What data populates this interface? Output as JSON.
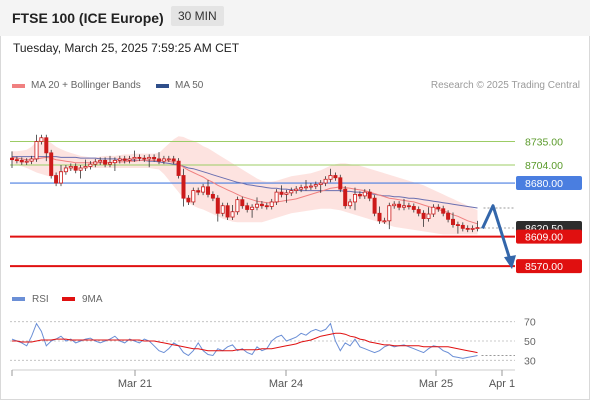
{
  "header": {
    "title": "FTSE 100 (ICE Europe)",
    "interval": "30 MIN"
  },
  "timestamp": "Tuesday, March 25, 2025 7:59:25 AM CET",
  "legend": [
    {
      "label": "MA 20 + Bollinger Bands",
      "color": "#f08080"
    },
    {
      "label": "MA 50",
      "color": "#2f4e8a"
    }
  ],
  "watermark": "Research © 2025 Trading Central",
  "colors": {
    "up": "#cc1a1a",
    "down": "#cc1a1a",
    "resistance": "#9ccc65",
    "pivot": "#4a7ee0",
    "support": "#e01010",
    "arrow": "#3366aa",
    "current": "#2d2d2d"
  },
  "chart_data": [
    {
      "type": "candlestick",
      "ylim": [
        8545,
        8790
      ],
      "x_labels": [
        "Mar 21",
        "Mar 24",
        "Mar 25",
        "Apr 1"
      ],
      "levels": [
        {
          "label": "8735.00",
          "value": 8735.0,
          "kind": "resistance"
        },
        {
          "label": "8704.00",
          "value": 8704.0,
          "kind": "resistance"
        },
        {
          "label": "8680.00",
          "value": 8680.0,
          "kind": "pivot"
        },
        {
          "label": "8620.50",
          "value": 8620.5,
          "kind": "current"
        },
        {
          "label": "8609.00",
          "value": 8609.0,
          "kind": "support"
        },
        {
          "label": "8570.00",
          "value": 8570.0,
          "kind": "support"
        }
      ],
      "forecast_path": [
        8620,
        8650,
        8570
      ],
      "close": [
        8711,
        8710,
        8708,
        8709,
        8712,
        8735,
        8740,
        8720,
        8690,
        8680,
        8695,
        8700,
        8702,
        8697,
        8700,
        8702,
        8705,
        8708,
        8710,
        8705,
        8707,
        8710,
        8712,
        8710,
        8712,
        8714,
        8713,
        8712,
        8714,
        8712,
        8709,
        8712,
        8712,
        8709,
        8690,
        8660,
        8655,
        8670,
        8668,
        8675,
        8665,
        8660,
        8640,
        8650,
        8635,
        8642,
        8658,
        8650,
        8645,
        8648,
        8652,
        8650,
        8649,
        8655,
        8668,
        8665,
        8667,
        8670,
        8672,
        8674,
        8675,
        8676,
        8678,
        8680,
        8685,
        8690,
        8687,
        8672,
        8650,
        8655,
        8665,
        8663,
        8668,
        8660,
        8640,
        8630,
        8630,
        8650,
        8652,
        8648,
        8650,
        8649,
        8645,
        8640,
        8633,
        8639,
        8648,
        8646,
        8640,
        8632,
        8625,
        8624,
        8620,
        8619,
        8620,
        8621
      ],
      "ma20": [
        8714,
        8713,
        8712,
        8711,
        8711,
        8712,
        8713,
        8714,
        8713,
        8711,
        8710,
        8709,
        8708,
        8707,
        8707,
        8707,
        8707,
        8707,
        8707,
        8707,
        8707,
        8708,
        8708,
        8708,
        8709,
        8709,
        8710,
        8710,
        8710,
        8710,
        8710,
        8710,
        8709,
        8707,
        8705,
        8701,
        8697,
        8694,
        8691,
        8688,
        8684,
        8681,
        8677,
        8674,
        8671,
        8668,
        8665,
        8662,
        8660,
        8658,
        8656,
        8655,
        8654,
        8654,
        8655,
        8656,
        8657,
        8658,
        8659,
        8661,
        8663,
        8665,
        8667,
        8669,
        8671,
        8673,
        8674,
        8675,
        8674,
        8673,
        8672,
        8671,
        8670,
        8668,
        8666,
        8664,
        8662,
        8660,
        8659,
        8658,
        8657,
        8656,
        8655,
        8653,
        8651,
        8649,
        8647,
        8645,
        8643,
        8641,
        8638,
        8636,
        8633,
        8630,
        8628,
        8626
      ],
      "ma50": [
        8715,
        8715,
        8715,
        8715,
        8715,
        8715,
        8715,
        8715,
        8715,
        8715,
        8714,
        8714,
        8714,
        8714,
        8713,
        8713,
        8713,
        8713,
        8712,
        8712,
        8712,
        8712,
        8711,
        8711,
        8711,
        8710,
        8710,
        8710,
        8709,
        8709,
        8708,
        8707,
        8706,
        8705,
        8704,
        8702,
        8700,
        8699,
        8697,
        8695,
        8693,
        8691,
        8689,
        8687,
        8685,
        8683,
        8681,
        8680,
        8678,
        8677,
        8676,
        8675,
        8674,
        8673,
        8673,
        8672,
        8672,
        8671,
        8671,
        8670,
        8670,
        8670,
        8670,
        8670,
        8670,
        8670,
        8670,
        8670,
        8669,
        8669,
        8668,
        8668,
        8667,
        8666,
        8665,
        8664,
        8663,
        8663,
        8662,
        8662,
        8661,
        8660,
        8660,
        8659,
        8658,
        8657,
        8656,
        8655,
        8654,
        8653,
        8652,
        8651,
        8650,
        8649,
        8648,
        8647
      ],
      "bb_upper": [
        8722,
        8722,
        8723,
        8724,
        8728,
        8735,
        8740,
        8738,
        8733,
        8728,
        8725,
        8722,
        8720,
        8718,
        8716,
        8715,
        8714,
        8714,
        8715,
        8716,
        8716,
        8716,
        8717,
        8718,
        8718,
        8719,
        8719,
        8719,
        8719,
        8719,
        8720,
        8726,
        8732,
        8738,
        8742,
        8741,
        8738,
        8736,
        8733,
        8729,
        8726,
        8722,
        8718,
        8714,
        8710,
        8706,
        8702,
        8698,
        8694,
        8690,
        8686,
        8683,
        8682,
        8682,
        8683,
        8685,
        8687,
        8689,
        8690,
        8691,
        8692,
        8693,
        8695,
        8697,
        8700,
        8703,
        8705,
        8706,
        8706,
        8705,
        8704,
        8703,
        8701,
        8699,
        8697,
        8695,
        8693,
        8691,
        8689,
        8687,
        8685,
        8683,
        8681,
        8679,
        8677,
        8674,
        8671,
        8668,
        8665,
        8662,
        8659,
        8656,
        8653,
        8650,
        8647,
        8644
      ],
      "bb_lower": [
        8706,
        8704,
        8702,
        8700,
        8697,
        8694,
        8692,
        8690,
        8688,
        8690,
        8693,
        8695,
        8697,
        8698,
        8699,
        8700,
        8700,
        8700,
        8700,
        8700,
        8700,
        8700,
        8700,
        8700,
        8700,
        8700,
        8700,
        8700,
        8700,
        8699,
        8698,
        8692,
        8684,
        8676,
        8668,
        8660,
        8654,
        8650,
        8647,
        8645,
        8642,
        8639,
        8636,
        8633,
        8631,
        8629,
        8628,
        8628,
        8628,
        8628,
        8628,
        8628,
        8630,
        8632,
        8634,
        8636,
        8638,
        8640,
        8641,
        8642,
        8643,
        8644,
        8645,
        8646,
        8646,
        8646,
        8645,
        8644,
        8642,
        8640,
        8638,
        8636,
        8634,
        8632,
        8630,
        8628,
        8626,
        8624,
        8622,
        8621,
        8620,
        8619,
        8618,
        8617,
        8616,
        8615,
        8614,
        8613,
        8612,
        8612,
        8612,
        8612,
        8612,
        8612,
        8612,
        8612
      ]
    },
    {
      "type": "line",
      "ylim": [
        20,
        80
      ],
      "y_ticks": [
        70,
        50,
        30
      ],
      "legend": [
        "RSI",
        "9MA"
      ],
      "series": [
        {
          "name": "RSI",
          "color": "#6b8fd6",
          "values": [
            52,
            50,
            48,
            45,
            55,
            68,
            60,
            45,
            50,
            52,
            55,
            50,
            52,
            48,
            50,
            52,
            53,
            50,
            48,
            50,
            52,
            55,
            50,
            48,
            52,
            50,
            48,
            52,
            50,
            45,
            40,
            38,
            42,
            48,
            45,
            38,
            35,
            40,
            48,
            40,
            36,
            35,
            42,
            40,
            44,
            46,
            40,
            42,
            38,
            36,
            44,
            40,
            42,
            50,
            54,
            56,
            50,
            52,
            54,
            58,
            56,
            60,
            62,
            60,
            62,
            68,
            50,
            40,
            48,
            45,
            52,
            44,
            42,
            40,
            38,
            40,
            44,
            46,
            44,
            45,
            46,
            44,
            42,
            40,
            38,
            42,
            45,
            44,
            40,
            38,
            34,
            33,
            32,
            33,
            34,
            35
          ]
        },
        {
          "name": "9MA",
          "color": "#e01010",
          "values": [
            50,
            50,
            49,
            49,
            49,
            50,
            51,
            51,
            51,
            52,
            52,
            52,
            51,
            51,
            51,
            51,
            51,
            51,
            51,
            51,
            51,
            51,
            51,
            51,
            51,
            51,
            51,
            50,
            50,
            50,
            49,
            48,
            47,
            46,
            45,
            44,
            43,
            42,
            42,
            41,
            40,
            40,
            40,
            40,
            40,
            40,
            41,
            41,
            41,
            41,
            41,
            42,
            42,
            42,
            43,
            44,
            45,
            46,
            47,
            49,
            50,
            51,
            53,
            55,
            56,
            57,
            58,
            58,
            57,
            55,
            54,
            52,
            51,
            49,
            48,
            47,
            46,
            46,
            45,
            45,
            45,
            45,
            45,
            45,
            44,
            44,
            44,
            44,
            44,
            44,
            43,
            42,
            41,
            40,
            39,
            38
          ]
        }
      ]
    }
  ]
}
